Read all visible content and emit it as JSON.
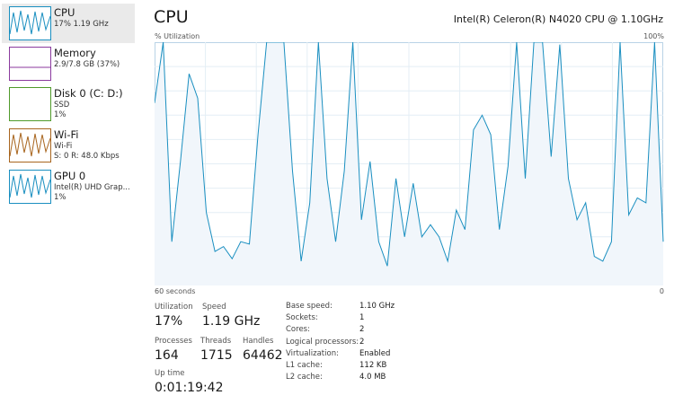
{
  "sidebar": [
    {
      "name": "CPU",
      "detail": [
        "17% 1.19 GHz"
      ]
    },
    {
      "name": "Memory",
      "detail": [
        "2.9/7.8 GB (37%)"
      ]
    },
    {
      "name": "Disk 0 (C: D:)",
      "detail": [
        "SSD",
        "1%"
      ]
    },
    {
      "name": "Wi-Fi",
      "detail": [
        "Wi-Fi",
        "S: 0 R: 48.0 Kbps"
      ]
    },
    {
      "name": "GPU 0",
      "detail": [
        "Intel(R) UHD Grap...",
        "1%"
      ]
    }
  ],
  "header": {
    "title": "CPU",
    "model": "Intel(R) Celeron(R) N4020 CPU @ 1.10GHz"
  },
  "graph": {
    "y_label": "% Utilization",
    "y_max_label": "100%",
    "x_left_label": "60 seconds",
    "x_right_label": "0",
    "ylim": [
      0,
      100
    ],
    "values": [
      75,
      100,
      18,
      51,
      87,
      77,
      30,
      14,
      16,
      11,
      18,
      17,
      62,
      100,
      100,
      100,
      47,
      10,
      34,
      100,
      44,
      18,
      47,
      100,
      27,
      51,
      18,
      8,
      44,
      20,
      42,
      20,
      25,
      20,
      10,
      31,
      23,
      64,
      70,
      62,
      23,
      49,
      100,
      44,
      100,
      100,
      53,
      99,
      44,
      27,
      34,
      12,
      10,
      18,
      100,
      29,
      36,
      34,
      100,
      18
    ]
  },
  "stats": [
    {
      "label": "Utilization",
      "value": "17%"
    },
    {
      "label": "Speed",
      "value": "1.19 GHz"
    },
    {
      "label": "Processes",
      "value": "164"
    },
    {
      "label": "Threads",
      "value": "1715"
    },
    {
      "label": "Handles",
      "value": "64462"
    },
    {
      "label": "Up time",
      "value": "0:01:19:42"
    }
  ],
  "specs": [
    [
      "Base speed:",
      "1.10 GHz"
    ],
    [
      "Sockets:",
      "1"
    ],
    [
      "Cores:",
      "2"
    ],
    [
      "Logical processors:",
      "2"
    ],
    [
      "Virtualization:",
      "Enabled"
    ],
    [
      "L1 cache:",
      "112 KB"
    ],
    [
      "L2 cache:",
      "4.0 MB"
    ]
  ]
}
